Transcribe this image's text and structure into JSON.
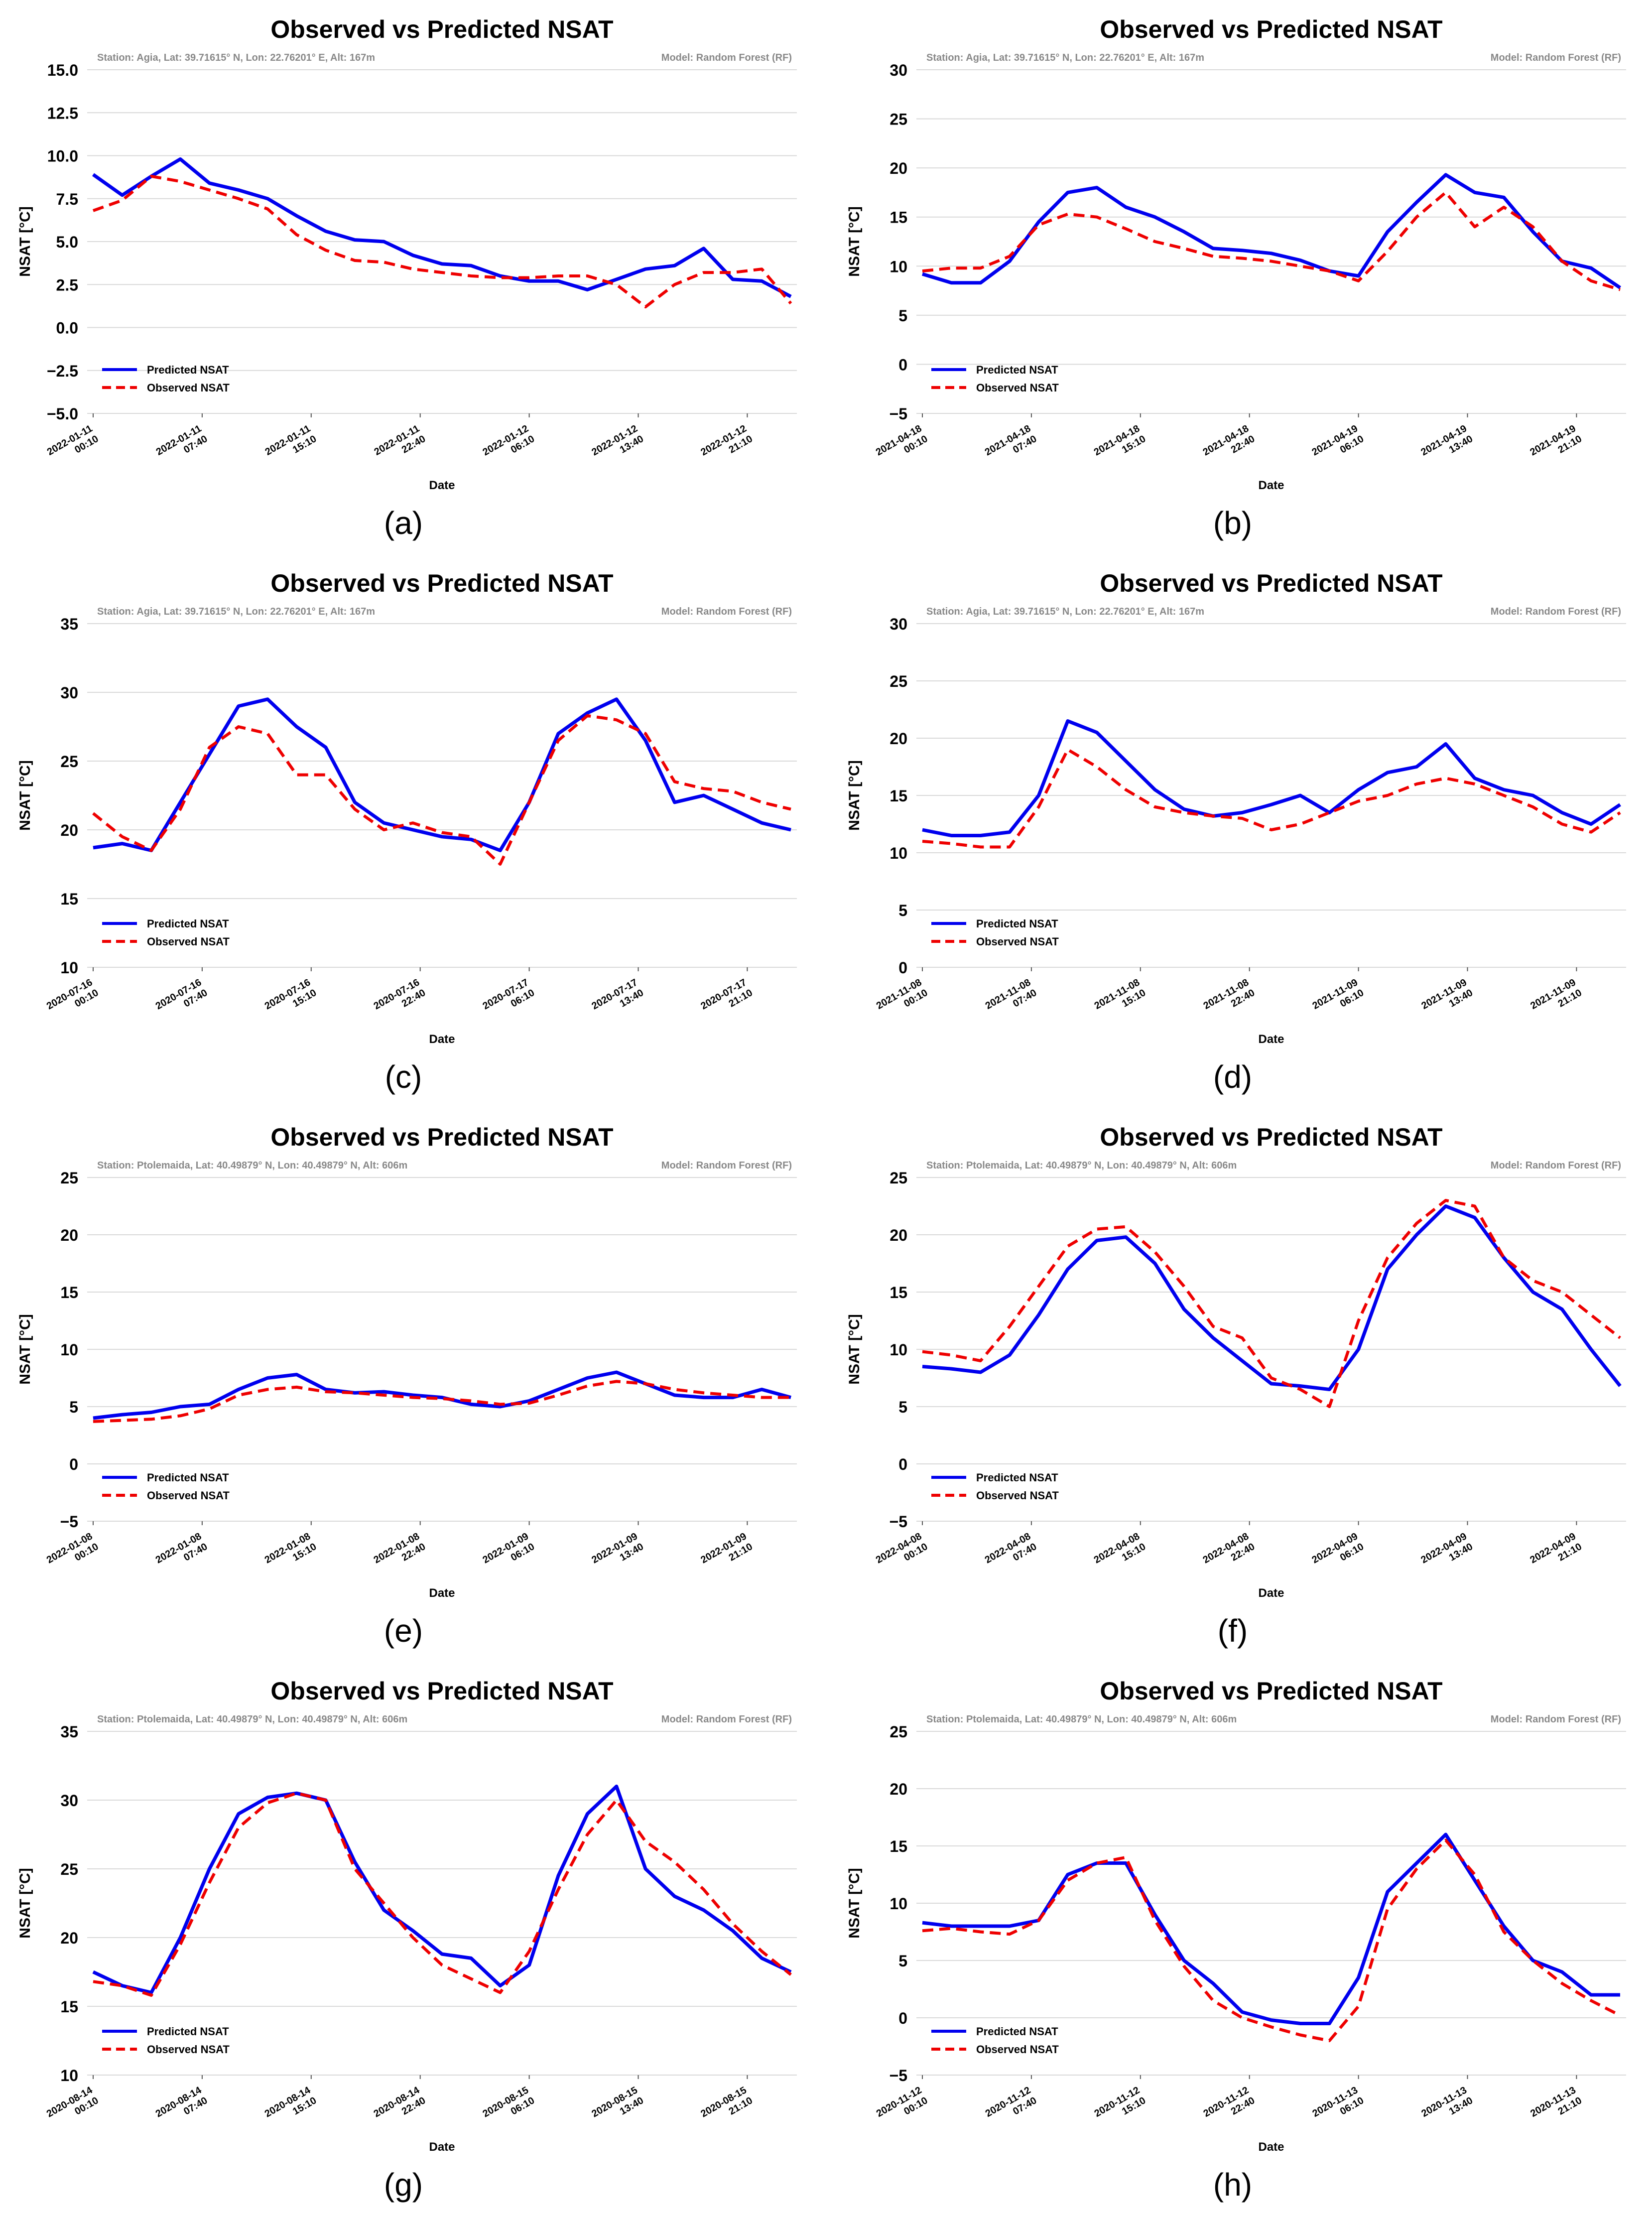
{
  "figure": {
    "common": {
      "title": "Observed vs Predicted NSAT",
      "ylabel": "NSAT [°C]",
      "xlabel": "Date",
      "model": "Model: Random Forest (RF)",
      "legend": [
        "Predicted NSAT",
        "Observed NSAT"
      ],
      "colors": {
        "predicted": "#0000ee",
        "observed": "#ee0000",
        "grid": "#d9d9d9",
        "meta": "#888888"
      }
    },
    "stations": {
      "agia": "Station: Agia, Lat: 39.71615° N, Lon: 22.76201° E, Alt: 167m",
      "ptolemaida": "Station: Ptolemaida, Lat: 40.49879° N, Lon: 40.49879° N, Alt: 606m"
    }
  },
  "chart_data": [
    {
      "panel": "(a)",
      "type": "line",
      "station": "Station: Agia, Lat: 39.71615° N, Lon: 22.76201° E, Alt: 167m",
      "title": "Observed vs Predicted NSAT",
      "xlabel": "Date",
      "ylabel": "NSAT [°C]",
      "ylim": [
        -5,
        15
      ],
      "yticks": [
        "−5.0",
        "−2.5",
        "0.0",
        "2.5",
        "5.0",
        "7.5",
        "10.0",
        "12.5",
        "15.0"
      ],
      "xticks": [
        [
          "2022-01-11",
          "00:10"
        ],
        [
          "2022-01-11",
          "07:40"
        ],
        [
          "2022-01-11",
          "15:10"
        ],
        [
          "2022-01-11",
          "22:40"
        ],
        [
          "2022-01-12",
          "06:10"
        ],
        [
          "2022-01-12",
          "13:40"
        ],
        [
          "2022-01-12",
          "21:10"
        ]
      ],
      "x_hours": [
        0,
        2,
        4,
        6,
        8,
        10,
        12,
        14,
        16,
        18,
        20,
        22,
        24,
        26,
        28,
        30,
        32,
        34,
        36,
        38,
        40,
        42,
        44,
        46,
        48
      ],
      "series": [
        {
          "name": "Predicted NSAT",
          "values": [
            8.9,
            7.7,
            8.8,
            9.8,
            8.4,
            8.0,
            7.5,
            6.5,
            5.6,
            5.1,
            5.0,
            4.2,
            3.7,
            3.6,
            3.0,
            2.7,
            2.7,
            2.2,
            2.8,
            3.4,
            3.6,
            4.6,
            2.8,
            2.7,
            1.8
          ]
        },
        {
          "name": "Observed NSAT",
          "values": [
            6.8,
            7.4,
            8.8,
            8.5,
            8.0,
            7.5,
            6.9,
            5.4,
            4.5,
            3.9,
            3.8,
            3.4,
            3.2,
            3.0,
            2.9,
            2.9,
            3.0,
            3.0,
            2.5,
            1.2,
            2.5,
            3.2,
            3.2,
            3.4,
            1.4
          ]
        }
      ]
    },
    {
      "panel": "(b)",
      "type": "line",
      "station": "Station: Agia, Lat: 39.71615° N, Lon: 22.76201° E, Alt: 167m",
      "title": "Observed vs Predicted NSAT",
      "xlabel": "Date",
      "ylabel": "NSAT [°C]",
      "ylim": [
        -5,
        30
      ],
      "yticks": [
        "−5",
        "0",
        "5",
        "10",
        "15",
        "20",
        "25",
        "30"
      ],
      "xticks": [
        [
          "2021-04-18",
          "00:10"
        ],
        [
          "2021-04-18",
          "07:40"
        ],
        [
          "2021-04-18",
          "15:10"
        ],
        [
          "2021-04-18",
          "22:40"
        ],
        [
          "2021-04-19",
          "06:10"
        ],
        [
          "2021-04-19",
          "13:40"
        ],
        [
          "2021-04-19",
          "21:10"
        ]
      ],
      "x_hours": [
        0,
        2,
        4,
        6,
        8,
        10,
        12,
        14,
        16,
        18,
        20,
        22,
        24,
        26,
        28,
        30,
        32,
        34,
        36,
        38,
        40,
        42,
        44,
        46,
        48
      ],
      "series": [
        {
          "name": "Predicted NSAT",
          "values": [
            9.2,
            8.3,
            8.3,
            10.5,
            14.5,
            17.5,
            18.0,
            16.0,
            15.0,
            13.5,
            11.8,
            11.6,
            11.3,
            10.6,
            9.5,
            9.0,
            13.5,
            16.5,
            19.3,
            17.5,
            17.0,
            13.5,
            10.5,
            9.8,
            7.8
          ]
        },
        {
          "name": "Observed NSAT",
          "values": [
            9.5,
            9.8,
            9.8,
            11.0,
            14.2,
            15.3,
            15.0,
            13.8,
            12.5,
            11.8,
            11.0,
            10.8,
            10.5,
            10.0,
            9.5,
            8.5,
            11.5,
            15.0,
            17.5,
            14.0,
            16.0,
            14.0,
            10.5,
            8.5,
            7.6
          ]
        }
      ]
    },
    {
      "panel": "(c)",
      "type": "line",
      "station": "Station: Agia, Lat: 39.71615° N, Lon: 22.76201° E, Alt: 167m",
      "title": "Observed vs Predicted NSAT",
      "xlabel": "Date",
      "ylabel": "NSAT [°C]",
      "ylim": [
        10,
        35
      ],
      "yticks": [
        "10",
        "15",
        "20",
        "25",
        "30",
        "35"
      ],
      "xticks": [
        [
          "2020-07-16",
          "00:10"
        ],
        [
          "2020-07-16",
          "07:40"
        ],
        [
          "2020-07-16",
          "15:10"
        ],
        [
          "2020-07-16",
          "22:40"
        ],
        [
          "2020-07-17",
          "06:10"
        ],
        [
          "2020-07-17",
          "13:40"
        ],
        [
          "2020-07-17",
          "21:10"
        ]
      ],
      "x_hours": [
        0,
        2,
        4,
        6,
        8,
        10,
        12,
        14,
        16,
        18,
        20,
        22,
        24,
        26,
        28,
        30,
        32,
        34,
        36,
        38,
        40,
        42,
        44,
        46,
        48
      ],
      "series": [
        {
          "name": "Predicted NSAT",
          "values": [
            18.7,
            19.0,
            18.5,
            22.0,
            25.5,
            29.0,
            29.5,
            27.5,
            26.0,
            22.0,
            20.5,
            20.0,
            19.5,
            19.3,
            18.5,
            22.0,
            27.0,
            28.5,
            29.5,
            26.5,
            22.0,
            22.5,
            21.5,
            20.5,
            20.0
          ]
        },
        {
          "name": "Observed NSAT",
          "values": [
            21.2,
            19.5,
            18.5,
            21.5,
            26.0,
            27.5,
            27.0,
            24.0,
            24.0,
            21.5,
            20.0,
            20.5,
            19.8,
            19.5,
            17.5,
            22.0,
            26.5,
            28.3,
            28.0,
            27.0,
            23.5,
            23.0,
            22.8,
            22.0,
            21.5
          ]
        }
      ]
    },
    {
      "panel": "(d)",
      "type": "line",
      "station": "Station: Agia, Lat: 39.71615° N, Lon: 22.76201° E, Alt: 167m",
      "title": "Observed vs Predicted NSAT",
      "xlabel": "Date",
      "ylabel": "NSAT [°C]",
      "ylim": [
        0,
        30
      ],
      "yticks": [
        "0",
        "5",
        "10",
        "15",
        "20",
        "25",
        "30"
      ],
      "xticks": [
        [
          "2021-11-08",
          "00:10"
        ],
        [
          "2021-11-08",
          "07:40"
        ],
        [
          "2021-11-08",
          "15:10"
        ],
        [
          "2021-11-08",
          "22:40"
        ],
        [
          "2021-11-09",
          "06:10"
        ],
        [
          "2021-11-09",
          "13:40"
        ],
        [
          "2021-11-09",
          "21:10"
        ]
      ],
      "x_hours": [
        0,
        2,
        4,
        6,
        8,
        10,
        12,
        14,
        16,
        18,
        20,
        22,
        24,
        26,
        28,
        30,
        32,
        34,
        36,
        38,
        40,
        42,
        44,
        46,
        48
      ],
      "series": [
        {
          "name": "Predicted NSAT",
          "values": [
            12.0,
            11.5,
            11.5,
            11.8,
            15.0,
            21.5,
            20.5,
            18.0,
            15.5,
            13.8,
            13.2,
            13.5,
            14.2,
            15.0,
            13.5,
            15.5,
            17.0,
            17.5,
            19.5,
            16.5,
            15.5,
            15.0,
            13.5,
            12.5,
            14.2
          ]
        },
        {
          "name": "Observed NSAT",
          "values": [
            11.0,
            10.8,
            10.5,
            10.5,
            14.0,
            19.0,
            17.5,
            15.5,
            14.0,
            13.5,
            13.2,
            13.0,
            12.0,
            12.5,
            13.5,
            14.5,
            15.0,
            16.0,
            16.5,
            16.0,
            15.0,
            14.0,
            12.5,
            11.8,
            13.5
          ]
        }
      ]
    },
    {
      "panel": "(e)",
      "type": "line",
      "station": "Station: Ptolemaida, Lat: 40.49879° N, Lon: 40.49879° N, Alt: 606m",
      "title": "Observed vs Predicted NSAT",
      "xlabel": "Date",
      "ylabel": "NSAT [°C]",
      "ylim": [
        -5,
        25
      ],
      "yticks": [
        "−5",
        "0",
        "5",
        "10",
        "15",
        "20",
        "25"
      ],
      "xticks": [
        [
          "2022-01-08",
          "00:10"
        ],
        [
          "2022-01-08",
          "07:40"
        ],
        [
          "2022-01-08",
          "15:10"
        ],
        [
          "2022-01-08",
          "22:40"
        ],
        [
          "2022-01-09",
          "06:10"
        ],
        [
          "2022-01-09",
          "13:40"
        ],
        [
          "2022-01-09",
          "21:10"
        ]
      ],
      "x_hours": [
        0,
        2,
        4,
        6,
        8,
        10,
        12,
        14,
        16,
        18,
        20,
        22,
        24,
        26,
        28,
        30,
        32,
        34,
        36,
        38,
        40,
        42,
        44,
        46,
        48
      ],
      "series": [
        {
          "name": "Predicted NSAT",
          "values": [
            4.0,
            4.3,
            4.5,
            5.0,
            5.2,
            6.5,
            7.5,
            7.8,
            6.5,
            6.2,
            6.3,
            6.0,
            5.8,
            5.2,
            5.0,
            5.5,
            6.5,
            7.5,
            8.0,
            7.0,
            6.0,
            5.8,
            5.8,
            6.5,
            5.8
          ]
        },
        {
          "name": "Observed NSAT",
          "values": [
            3.7,
            3.8,
            3.9,
            4.2,
            4.8,
            6.0,
            6.5,
            6.7,
            6.3,
            6.2,
            6.0,
            5.8,
            5.7,
            5.5,
            5.2,
            5.3,
            6.0,
            6.8,
            7.2,
            7.0,
            6.5,
            6.2,
            6.0,
            5.8,
            5.8
          ]
        }
      ]
    },
    {
      "panel": "(f)",
      "type": "line",
      "station": "Station: Ptolemaida, Lat: 40.49879° N, Lon: 40.49879° N, Alt: 606m",
      "title": "Observed vs Predicted NSAT",
      "xlabel": "Date",
      "ylabel": "NSAT [°C]",
      "ylim": [
        -5,
        25
      ],
      "yticks": [
        "−5",
        "0",
        "5",
        "10",
        "15",
        "20",
        "25"
      ],
      "xticks": [
        [
          "2022-04-08",
          "00:10"
        ],
        [
          "2022-04-08",
          "07:40"
        ],
        [
          "2022-04-08",
          "15:10"
        ],
        [
          "2022-04-08",
          "22:40"
        ],
        [
          "2022-04-09",
          "06:10"
        ],
        [
          "2022-04-09",
          "13:40"
        ],
        [
          "2022-04-09",
          "21:10"
        ]
      ],
      "x_hours": [
        0,
        2,
        4,
        6,
        8,
        10,
        12,
        14,
        16,
        18,
        20,
        22,
        24,
        26,
        28,
        30,
        32,
        34,
        36,
        38,
        40,
        42,
        44,
        46,
        48
      ],
      "series": [
        {
          "name": "Predicted NSAT",
          "values": [
            8.5,
            8.3,
            8.0,
            9.5,
            13.0,
            17.0,
            19.5,
            19.8,
            17.5,
            13.5,
            11.0,
            9.0,
            7.0,
            6.8,
            6.5,
            10.0,
            17.0,
            20.0,
            22.5,
            21.5,
            18.0,
            15.0,
            13.5,
            10.0,
            6.8
          ]
        },
        {
          "name": "Observed NSAT",
          "values": [
            9.8,
            9.5,
            9.0,
            12.0,
            15.5,
            19.0,
            20.5,
            20.7,
            18.5,
            15.5,
            12.0,
            11.0,
            7.5,
            6.5,
            5.0,
            12.5,
            18.0,
            21.0,
            23.0,
            22.5,
            18.0,
            16.0,
            15.0,
            13.0,
            11.0
          ]
        }
      ]
    },
    {
      "panel": "(g)",
      "type": "line",
      "station": "Station: Ptolemaida, Lat: 40.49879° N, Lon: 40.49879° N, Alt: 606m",
      "title": "Observed vs Predicted NSAT",
      "xlabel": "Date",
      "ylabel": "NSAT [°C]",
      "ylim": [
        10,
        35
      ],
      "yticks": [
        "10",
        "15",
        "20",
        "25",
        "30",
        "35"
      ],
      "xticks": [
        [
          "2020-08-14",
          "00:10"
        ],
        [
          "2020-08-14",
          "07:40"
        ],
        [
          "2020-08-14",
          "15:10"
        ],
        [
          "2020-08-14",
          "22:40"
        ],
        [
          "2020-08-15",
          "06:10"
        ],
        [
          "2020-08-15",
          "13:40"
        ],
        [
          "2020-08-15",
          "21:10"
        ]
      ],
      "x_hours": [
        0,
        2,
        4,
        6,
        8,
        10,
        12,
        14,
        16,
        18,
        20,
        22,
        24,
        26,
        28,
        30,
        32,
        34,
        36,
        38,
        40,
        42,
        44,
        46,
        48
      ],
      "series": [
        {
          "name": "Predicted NSAT",
          "values": [
            17.5,
            16.5,
            16.0,
            20.0,
            25.0,
            29.0,
            30.2,
            30.5,
            30.0,
            25.5,
            22.0,
            20.5,
            18.8,
            18.5,
            16.5,
            18.0,
            24.5,
            29.0,
            31.0,
            25.0,
            23.0,
            22.0,
            20.5,
            18.5,
            17.5
          ]
        },
        {
          "name": "Observed NSAT",
          "values": [
            16.8,
            16.5,
            15.8,
            19.5,
            24.0,
            28.0,
            29.8,
            30.5,
            30.0,
            25.0,
            22.5,
            20.0,
            18.0,
            17.0,
            16.0,
            19.0,
            23.5,
            27.5,
            30.0,
            27.0,
            25.5,
            23.5,
            21.0,
            19.0,
            17.3
          ]
        }
      ]
    },
    {
      "panel": "(h)",
      "type": "line",
      "station": "Station: Ptolemaida, Lat: 40.49879° N, Lon: 40.49879° N, Alt: 606m",
      "title": "Observed vs Predicted NSAT",
      "xlabel": "Date",
      "ylabel": "NSAT [°C]",
      "ylim": [
        -5,
        25
      ],
      "yticks": [
        "−5",
        "0",
        "5",
        "10",
        "15",
        "20",
        "25"
      ],
      "xticks": [
        [
          "2020-11-12",
          "00:10"
        ],
        [
          "2020-11-12",
          "07:40"
        ],
        [
          "2020-11-12",
          "15:10"
        ],
        [
          "2020-11-12",
          "22:40"
        ],
        [
          "2020-11-13",
          "06:10"
        ],
        [
          "2020-11-13",
          "13:40"
        ],
        [
          "2020-11-13",
          "21:10"
        ]
      ],
      "x_hours": [
        0,
        2,
        4,
        6,
        8,
        10,
        12,
        14,
        16,
        18,
        20,
        22,
        24,
        26,
        28,
        30,
        32,
        34,
        36,
        38,
        40,
        42,
        44,
        46,
        48
      ],
      "series": [
        {
          "name": "Predicted NSAT",
          "values": [
            8.3,
            8.0,
            8.0,
            8.0,
            8.5,
            12.5,
            13.5,
            13.5,
            9.0,
            5.0,
            3.0,
            0.5,
            -0.2,
            -0.5,
            -0.5,
            3.5,
            11.0,
            13.5,
            16.0,
            12.0,
            8.0,
            5.0,
            4.0,
            2.0,
            2.0
          ]
        },
        {
          "name": "Observed NSAT",
          "values": [
            7.6,
            7.8,
            7.5,
            7.3,
            8.5,
            12.0,
            13.5,
            14.0,
            8.5,
            4.5,
            1.5,
            0.0,
            -0.8,
            -1.5,
            -2.0,
            1.0,
            9.5,
            13.0,
            15.5,
            12.5,
            7.5,
            5.0,
            3.0,
            1.5,
            0.2
          ]
        }
      ]
    }
  ],
  "captions": [
    "(a)",
    "(b)",
    "(c)",
    "(d)",
    "(e)",
    "(f)",
    "(g)",
    "(h)"
  ]
}
